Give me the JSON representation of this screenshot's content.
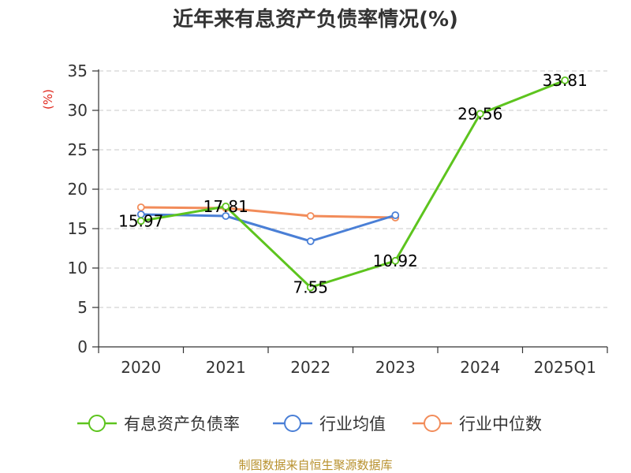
{
  "chart_data": {
    "type": "line",
    "title": "近年来有息资产负债率情况(%)",
    "ylabel": "(%)",
    "xlabel": "",
    "categories": [
      "2020",
      "2021",
      "2022",
      "2023",
      "2024",
      "2025Q1"
    ],
    "ylim": [
      0,
      35
    ],
    "yticks": [
      0,
      5,
      10,
      15,
      20,
      25,
      30,
      35
    ],
    "grid": true,
    "legend_position": "bottom",
    "series": [
      {
        "name": "有息资产负债率",
        "color": "#5dc41e",
        "values": [
          15.97,
          17.81,
          7.55,
          10.92,
          29.56,
          33.81
        ],
        "labels": [
          "15.97",
          "17.81",
          "7.55",
          "10.92",
          "29.56",
          "33.81"
        ]
      },
      {
        "name": "行业均值",
        "color": "#4a7fd6",
        "values": [
          16.8,
          16.6,
          13.4,
          16.7,
          null,
          null
        ]
      },
      {
        "name": "行业中位数",
        "color": "#f28c5a",
        "values": [
          17.7,
          17.6,
          16.6,
          16.4,
          null,
          null
        ]
      }
    ],
    "source": "制图数据来自恒生聚源数据库"
  }
}
